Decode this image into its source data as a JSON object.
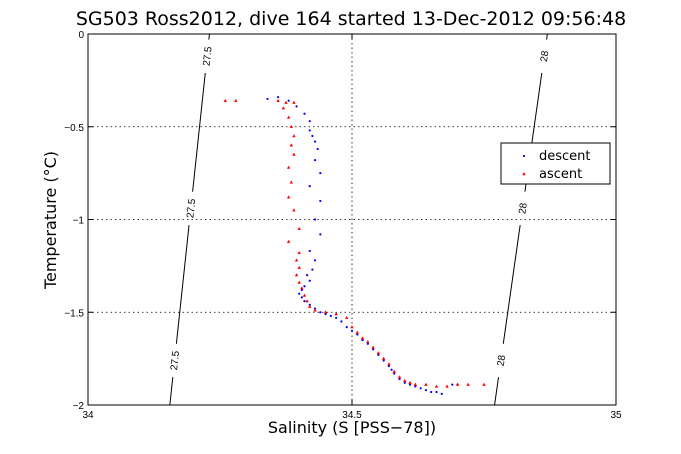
{
  "chart_data": {
    "type": "scatter",
    "title": "SG503 Ross2012, dive 164 started 13-Dec-2012 09:56:48",
    "xlabel": "Salinity (S [PSS−78])",
    "ylabel": "Temperature (°C)",
    "xlim": [
      34,
      35
    ],
    "ylim": [
      -2,
      0
    ],
    "xticks": [
      34,
      34.5,
      35
    ],
    "xtick_labels": [
      "34",
      "34.5",
      "35"
    ],
    "yticks": [
      0,
      -0.5,
      -1,
      -1.5,
      -2
    ],
    "ytick_labels": [
      "0",
      "−0.5",
      "−1",
      "−1.5",
      "−2"
    ],
    "grid": true,
    "legend_position": "right",
    "contours": [
      {
        "label": "27.5",
        "labels": [
          "27.5",
          "27.5",
          "27.5"
        ],
        "points": [
          [
            34.23,
            0
          ],
          [
            34.155,
            -2
          ]
        ]
      },
      {
        "label": "28",
        "labels": [
          "28",
          "28",
          "28"
        ],
        "points": [
          [
            34.87,
            0
          ],
          [
            34.77,
            -2
          ]
        ]
      }
    ],
    "series": [
      {
        "name": "descent",
        "color": "#0000ff",
        "marker": "point",
        "points": [
          [
            34.34,
            -0.35
          ],
          [
            34.36,
            -0.34
          ],
          [
            34.38,
            -0.36
          ],
          [
            34.395,
            -0.39
          ],
          [
            34.41,
            -0.43
          ],
          [
            34.42,
            -0.47
          ],
          [
            34.42,
            -0.52
          ],
          [
            34.425,
            -0.55
          ],
          [
            34.43,
            -0.58
          ],
          [
            34.435,
            -0.62
          ],
          [
            34.43,
            -0.68
          ],
          [
            34.44,
            -0.75
          ],
          [
            34.42,
            -0.82
          ],
          [
            34.44,
            -0.9
          ],
          [
            34.43,
            -1.0
          ],
          [
            34.44,
            -1.08
          ],
          [
            34.42,
            -1.17
          ],
          [
            34.43,
            -1.22
          ],
          [
            34.425,
            -1.27
          ],
          [
            34.415,
            -1.3
          ],
          [
            34.42,
            -1.33
          ],
          [
            34.41,
            -1.36
          ],
          [
            34.405,
            -1.38
          ],
          [
            34.4,
            -1.4
          ],
          [
            34.405,
            -1.42
          ],
          [
            34.41,
            -1.44
          ],
          [
            34.42,
            -1.46
          ],
          [
            34.43,
            -1.48
          ],
          [
            34.44,
            -1.5
          ],
          [
            34.45,
            -1.51
          ],
          [
            34.46,
            -1.52
          ],
          [
            34.47,
            -1.53
          ],
          [
            34.48,
            -1.55
          ],
          [
            34.49,
            -1.58
          ],
          [
            34.5,
            -1.6
          ],
          [
            34.51,
            -1.62
          ],
          [
            34.52,
            -1.65
          ],
          [
            34.53,
            -1.67
          ],
          [
            34.54,
            -1.7
          ],
          [
            34.55,
            -1.73
          ],
          [
            34.56,
            -1.76
          ],
          [
            34.57,
            -1.79
          ],
          [
            34.575,
            -1.81
          ],
          [
            34.58,
            -1.83
          ],
          [
            34.59,
            -1.86
          ],
          [
            34.6,
            -1.88
          ],
          [
            34.61,
            -1.89
          ],
          [
            34.62,
            -1.9
          ],
          [
            34.63,
            -1.91
          ],
          [
            34.64,
            -1.92
          ],
          [
            34.65,
            -1.93
          ],
          [
            34.66,
            -1.93
          ],
          [
            34.67,
            -1.94
          ],
          [
            34.69,
            -1.89
          ],
          [
            34.7,
            -1.89
          ]
        ]
      },
      {
        "name": "ascent",
        "color": "#ff0000",
        "marker": "triangle",
        "points": [
          [
            34.26,
            -0.36
          ],
          [
            34.28,
            -0.36
          ],
          [
            34.36,
            -0.36
          ],
          [
            34.375,
            -0.37
          ],
          [
            34.39,
            -0.37
          ],
          [
            34.37,
            -0.4
          ],
          [
            34.38,
            -0.45
          ],
          [
            34.385,
            -0.5
          ],
          [
            34.39,
            -0.55
          ],
          [
            34.385,
            -0.6
          ],
          [
            34.39,
            -0.65
          ],
          [
            34.38,
            -0.72
          ],
          [
            34.385,
            -0.8
          ],
          [
            34.38,
            -0.88
          ],
          [
            34.39,
            -0.95
          ],
          [
            34.4,
            -1.05
          ],
          [
            34.38,
            -1.12
          ],
          [
            34.4,
            -1.18
          ],
          [
            34.395,
            -1.22
          ],
          [
            34.4,
            -1.26
          ],
          [
            34.395,
            -1.3
          ],
          [
            34.4,
            -1.34
          ],
          [
            34.405,
            -1.37
          ],
          [
            34.41,
            -1.41
          ],
          [
            34.415,
            -1.44
          ],
          [
            34.42,
            -1.47
          ],
          [
            34.43,
            -1.49
          ],
          [
            34.45,
            -1.5
          ],
          [
            34.47,
            -1.51
          ],
          [
            34.49,
            -1.53
          ],
          [
            34.5,
            -1.58
          ],
          [
            34.51,
            -1.61
          ],
          [
            34.52,
            -1.64
          ],
          [
            34.53,
            -1.66
          ],
          [
            34.54,
            -1.69
          ],
          [
            34.55,
            -1.72
          ],
          [
            34.56,
            -1.75
          ],
          [
            34.57,
            -1.78
          ],
          [
            34.58,
            -1.82
          ],
          [
            34.59,
            -1.85
          ],
          [
            34.6,
            -1.87
          ],
          [
            34.61,
            -1.88
          ],
          [
            34.62,
            -1.89
          ],
          [
            34.64,
            -1.89
          ],
          [
            34.66,
            -1.9
          ],
          [
            34.68,
            -1.9
          ],
          [
            34.7,
            -1.89
          ],
          [
            34.72,
            -1.89
          ],
          [
            34.75,
            -1.89
          ]
        ]
      }
    ]
  }
}
